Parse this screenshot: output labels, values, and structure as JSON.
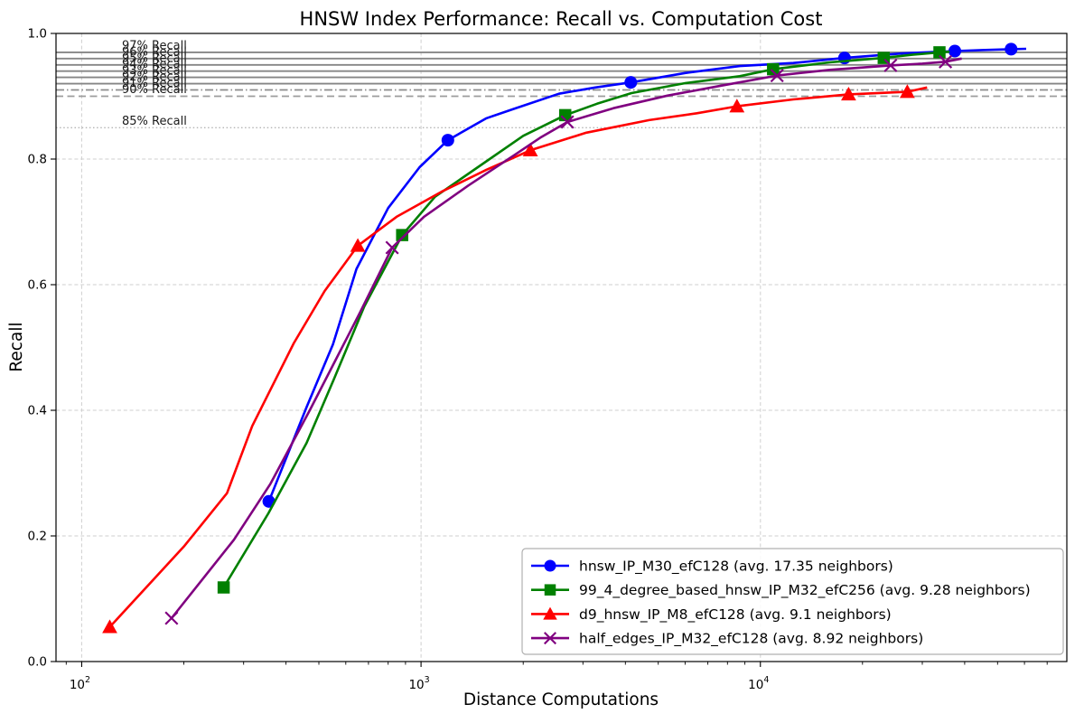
{
  "chart_data": {
    "type": "line",
    "title": "HNSW Index Performance: Recall vs. Computation Cost",
    "xlabel": "Distance Computations",
    "ylabel": "Recall",
    "x_scale": "log",
    "xlim": [
      84,
      80000
    ],
    "ylim": [
      0.0,
      1.0
    ],
    "grid": true,
    "legend_position": "lower right",
    "x_ticks": [
      {
        "value": 100,
        "label_base": "10",
        "label_exp": "2"
      },
      {
        "value": 1000,
        "label_base": "10",
        "label_exp": "3"
      },
      {
        "value": 10000,
        "label_base": "10",
        "label_exp": "4"
      }
    ],
    "y_ticks": [
      {
        "value": 0.0,
        "label": "0.0"
      },
      {
        "value": 0.2,
        "label": "0.2"
      },
      {
        "value": 0.4,
        "label": "0.4"
      },
      {
        "value": 0.6,
        "label": "0.6"
      },
      {
        "value": 0.8,
        "label": "0.8"
      },
      {
        "value": 1.0,
        "label": "1.0"
      }
    ],
    "reference_lines": [
      {
        "recall": 0.97,
        "label": "97% Recall",
        "style": "solid",
        "color": "#868686",
        "width": 1.9
      },
      {
        "recall": 0.96,
        "label": "96% Recall",
        "style": "solid",
        "color": "#868686",
        "width": 1.9
      },
      {
        "recall": 0.95,
        "label": "95% Recall",
        "style": "solid",
        "color": "#868686",
        "width": 1.9
      },
      {
        "recall": 0.94,
        "label": "94% Recall",
        "style": "solid",
        "color": "#868686",
        "width": 1.9
      },
      {
        "recall": 0.93,
        "label": "93% Recall",
        "style": "solid",
        "color": "#868686",
        "width": 1.9
      },
      {
        "recall": 0.92,
        "label": "92% Recall",
        "style": "solid",
        "color": "#868686",
        "width": 1.9
      },
      {
        "recall": 0.91,
        "label": "91% Recall",
        "style": "dashdot",
        "color": "#8c8c8c",
        "width": 1.7
      },
      {
        "recall": 0.9,
        "label": "90% Recall",
        "style": "dashed",
        "color": "#9c9c9c",
        "width": 1.7
      },
      {
        "recall": 0.85,
        "label": "85% Recall",
        "style": "dotted",
        "color": "#b5b5b5",
        "width": 1.4
      }
    ],
    "series": [
      {
        "name": "hnsw_IP_M30_efC128",
        "legend_label": "hnsw_IP_M30_efC128 (avg. 17.35 neighbors)",
        "color": "#0000ff",
        "marker": "circle",
        "points": [
          [
            356,
            0.255
          ],
          [
            1200,
            0.83
          ],
          [
            4150,
            0.922
          ],
          [
            17700,
            0.961
          ],
          [
            37400,
            0.972
          ],
          [
            54800,
            0.975
          ]
        ],
        "line_path": [
          [
            356,
            0.255
          ],
          [
            460,
            0.405
          ],
          [
            550,
            0.505
          ],
          [
            645,
            0.625
          ],
          [
            800,
            0.722
          ],
          [
            990,
            0.787
          ],
          [
            1200,
            0.83
          ],
          [
            1560,
            0.865
          ],
          [
            1880,
            0.88
          ],
          [
            2550,
            0.904
          ],
          [
            3260,
            0.914
          ],
          [
            4150,
            0.922
          ],
          [
            6000,
            0.937
          ],
          [
            8700,
            0.948
          ],
          [
            12500,
            0.953
          ],
          [
            17700,
            0.961
          ],
          [
            26000,
            0.968
          ],
          [
            37400,
            0.972
          ],
          [
            45000,
            0.9735
          ],
          [
            54800,
            0.975
          ],
          [
            60700,
            0.9755
          ]
        ]
      },
      {
        "name": "99_4_degree_based_hnsw_IP_M32_efC256",
        "legend_label": "99_4_degree_based_hnsw_IP_M32_efC256 (avg. 9.28 neighbors)",
        "color": "#008000",
        "marker": "square",
        "points": [
          [
            262,
            0.118
          ],
          [
            880,
            0.679
          ],
          [
            2660,
            0.87
          ],
          [
            10900,
            0.943
          ],
          [
            23100,
            0.961
          ],
          [
            33700,
            0.97
          ]
        ],
        "line_path": [
          [
            262,
            0.118
          ],
          [
            355,
            0.236
          ],
          [
            460,
            0.348
          ],
          [
            553,
            0.449
          ],
          [
            680,
            0.565
          ],
          [
            880,
            0.679
          ],
          [
            1100,
            0.74
          ],
          [
            1470,
            0.787
          ],
          [
            2000,
            0.837
          ],
          [
            2660,
            0.87
          ],
          [
            3300,
            0.888
          ],
          [
            4170,
            0.905
          ],
          [
            6030,
            0.921
          ],
          [
            8690,
            0.932
          ],
          [
            10900,
            0.943
          ],
          [
            16000,
            0.954
          ],
          [
            23100,
            0.961
          ],
          [
            28000,
            0.966
          ],
          [
            33700,
            0.97
          ],
          [
            36100,
            0.971
          ]
        ]
      },
      {
        "name": "d9_hnsw_IP_M8_efC128",
        "legend_label": "d9_hnsw_IP_M8_efC128 (avg. 9.1 neighbors)",
        "color": "#ff0000",
        "marker": "triangle-up",
        "points": [
          [
            121,
            0.055
          ],
          [
            651,
            0.662
          ],
          [
            2100,
            0.814
          ],
          [
            8530,
            0.884
          ],
          [
            18200,
            0.903
          ],
          [
            27100,
            0.907
          ]
        ],
        "line_path": [
          [
            121,
            0.055
          ],
          [
            200,
            0.183
          ],
          [
            268,
            0.268
          ],
          [
            318,
            0.375
          ],
          [
            422,
            0.507
          ],
          [
            520,
            0.59
          ],
          [
            651,
            0.662
          ],
          [
            847,
            0.708
          ],
          [
            1150,
            0.748
          ],
          [
            1560,
            0.783
          ],
          [
            2100,
            0.814
          ],
          [
            3070,
            0.842
          ],
          [
            4700,
            0.862
          ],
          [
            6500,
            0.873
          ],
          [
            8530,
            0.884
          ],
          [
            12500,
            0.895
          ],
          [
            18200,
            0.903
          ],
          [
            27100,
            0.907
          ],
          [
            31000,
            0.914
          ]
        ]
      },
      {
        "name": "half_edges_IP_M32_efC128",
        "legend_label": "half_edges_IP_M32_efC128 (avg. 8.92 neighbors)",
        "color": "#800080",
        "marker": "x",
        "points": [
          [
            184,
            0.069
          ],
          [
            822,
            0.659
          ],
          [
            2700,
            0.859
          ],
          [
            11200,
            0.933
          ],
          [
            24200,
            0.949
          ],
          [
            35100,
            0.955
          ]
        ],
        "line_path": [
          [
            184,
            0.069
          ],
          [
            281,
            0.194
          ],
          [
            360,
            0.283
          ],
          [
            470,
            0.4
          ],
          [
            560,
            0.48
          ],
          [
            663,
            0.557
          ],
          [
            822,
            0.659
          ],
          [
            1020,
            0.708
          ],
          [
            1380,
            0.758
          ],
          [
            1880,
            0.806
          ],
          [
            2260,
            0.835
          ],
          [
            2700,
            0.859
          ],
          [
            3690,
            0.881
          ],
          [
            5320,
            0.901
          ],
          [
            7690,
            0.917
          ],
          [
            11200,
            0.933
          ],
          [
            16000,
            0.942
          ],
          [
            24200,
            0.949
          ],
          [
            30000,
            0.952
          ],
          [
            35100,
            0.955
          ],
          [
            39200,
            0.96
          ]
        ]
      }
    ]
  }
}
